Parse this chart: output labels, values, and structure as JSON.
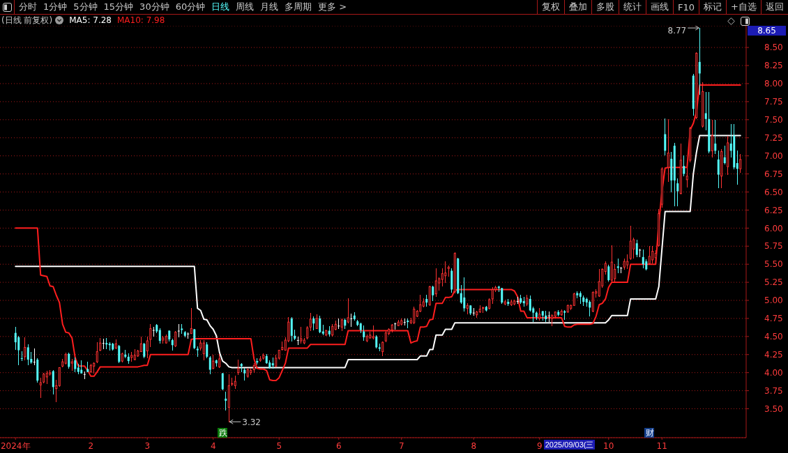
{
  "chart_data": {
    "type": "candlestick",
    "title": "(日线 前复权)",
    "categories": [
      "2024年",
      null,
      null,
      null,
      null,
      null,
      null,
      null,
      null,
      null,
      null,
      null,
      null,
      null,
      null,
      null,
      null,
      null,
      null,
      null,
      null,
      null,
      null,
      null,
      "2",
      null,
      null,
      null,
      null,
      null,
      null,
      null,
      null,
      null,
      null,
      null,
      null,
      null,
      null,
      null,
      null,
      null,
      "3",
      null,
      null,
      null,
      null,
      null,
      null,
      null,
      null,
      null,
      null,
      null,
      null,
      null,
      null,
      null,
      null,
      null,
      null,
      null,
      null,
      "4",
      null,
      null,
      null,
      null,
      null,
      null,
      null,
      null,
      null,
      null,
      null,
      null,
      null,
      null,
      null,
      null,
      null,
      null,
      null,
      null,
      "5",
      null,
      null,
      null,
      null,
      null,
      null,
      null,
      null,
      null,
      null,
      null,
      null,
      null,
      null,
      null,
      null,
      null,
      null,
      "6",
      null,
      null,
      null,
      null,
      null,
      null,
      null,
      null,
      null,
      null,
      null,
      null,
      null,
      null,
      null,
      null,
      null,
      null,
      null,
      "7",
      null,
      null,
      null,
      null,
      null,
      null,
      null,
      null,
      null,
      null,
      null,
      null,
      null,
      null,
      null,
      null,
      null,
      null,
      null,
      null,
      null,
      null,
      "8",
      null,
      null,
      null,
      null,
      null,
      null,
      null,
      null,
      null,
      null,
      null,
      null,
      null,
      null,
      null,
      null,
      null,
      null,
      null,
      null,
      "9",
      null,
      null,
      null,
      null,
      null,
      null,
      null,
      null,
      null,
      null,
      null,
      null,
      null,
      null,
      null,
      null,
      null,
      null,
      null,
      null,
      null,
      "10",
      null,
      null,
      null,
      null,
      null,
      null,
      null,
      null,
      null,
      null,
      null,
      null,
      null,
      null,
      null,
      null,
      "11",
      null,
      null,
      null,
      null,
      null,
      null,
      null,
      null,
      null,
      null,
      null,
      null,
      null,
      null,
      null,
      null,
      null,
      null,
      null,
      null,
      null,
      null,
      null,
      null,
      null
    ],
    "ohlc": [
      [
        4.55,
        4.63,
        4.32,
        4.42
      ],
      [
        4.49,
        4.5,
        4.11,
        4.31
      ],
      [
        4.2,
        4.29,
        4.17,
        4.19
      ],
      [
        4.22,
        4.48,
        4.18,
        4.35
      ],
      [
        4.35,
        4.39,
        4.11,
        4.18
      ],
      [
        4.19,
        4.28,
        4.13,
        4.14
      ],
      [
        4.15,
        4.33,
        4.11,
        4.15
      ],
      [
        4.18,
        4.19,
        3.87,
        3.89
      ],
      [
        3.83,
        3.92,
        3.66,
        3.86
      ],
      [
        3.87,
        3.99,
        3.86,
        3.98
      ],
      [
        3.94,
        4.02,
        3.85,
        3.99
      ],
      [
        3.98,
        4.03,
        3.96,
        4.0
      ],
      [
        4.02,
        4.03,
        3.7,
        3.8
      ],
      [
        3.78,
        3.89,
        3.6,
        3.82
      ],
      [
        3.82,
        4.07,
        3.81,
        4.07
      ],
      [
        4.09,
        4.18,
        4.08,
        4.15
      ],
      [
        4.13,
        4.27,
        4.12,
        4.25
      ],
      [
        4.26,
        4.27,
        4.06,
        4.08
      ],
      [
        4.13,
        4.18,
        4.03,
        4.15
      ],
      [
        4.17,
        4.2,
        4.01,
        4.05
      ],
      [
        4.07,
        4.12,
        3.98,
        4.01
      ],
      [
        4.04,
        4.16,
        3.99,
        3.99
      ],
      [
        3.98,
        4.01,
        3.92,
        3.98
      ],
      [
        4.05,
        4.15,
        4.01,
        4.01
      ],
      [
        4.01,
        4.12,
        4.0,
        4.1
      ],
      [
        4.09,
        4.14,
        3.99,
        4.13
      ],
      [
        4.15,
        4.42,
        4.14,
        4.29
      ],
      [
        4.31,
        4.47,
        4.3,
        4.41
      ],
      [
        4.41,
        4.46,
        4.33,
        4.41
      ],
      [
        4.41,
        4.47,
        4.33,
        4.39
      ],
      [
        4.4,
        4.42,
        4.31,
        4.38
      ],
      [
        4.4,
        4.41,
        4.31,
        4.32
      ],
      [
        4.34,
        4.45,
        4.33,
        4.4
      ],
      [
        4.37,
        4.38,
        4.14,
        4.15
      ],
      [
        4.16,
        4.27,
        4.15,
        4.26
      ],
      [
        4.25,
        4.31,
        4.21,
        4.22
      ],
      [
        4.22,
        4.26,
        4.13,
        4.16
      ],
      [
        4.21,
        4.28,
        4.16,
        4.24
      ],
      [
        4.18,
        4.32,
        4.18,
        4.24
      ],
      [
        4.23,
        4.31,
        4.22,
        4.3
      ],
      [
        4.29,
        4.49,
        4.29,
        4.4
      ],
      [
        4.4,
        4.41,
        4.21,
        4.22
      ],
      [
        4.3,
        4.49,
        4.21,
        4.44
      ],
      [
        4.46,
        4.67,
        4.36,
        4.61
      ],
      [
        4.59,
        4.63,
        4.5,
        4.59
      ],
      [
        4.66,
        4.67,
        4.55,
        4.57
      ],
      [
        4.59,
        4.61,
        4.41,
        4.44
      ],
      [
        4.45,
        4.5,
        4.41,
        4.48
      ],
      [
        4.41,
        4.52,
        4.41,
        4.5
      ],
      [
        4.58,
        4.58,
        4.44,
        4.46
      ],
      [
        4.45,
        4.46,
        4.31,
        4.38
      ],
      [
        4.37,
        4.57,
        4.36,
        4.56
      ],
      [
        4.58,
        4.67,
        4.49,
        4.58
      ],
      [
        4.61,
        4.67,
        4.54,
        4.59
      ],
      [
        4.56,
        4.57,
        4.49,
        4.51
      ],
      [
        4.54,
        4.55,
        4.48,
        4.54
      ],
      [
        4.54,
        4.89,
        4.54,
        4.61
      ],
      [
        4.6,
        4.6,
        4.33,
        4.34
      ],
      [
        4.33,
        4.36,
        4.22,
        4.31
      ],
      [
        4.34,
        4.44,
        4.31,
        4.41
      ],
      [
        4.26,
        4.44,
        4.18,
        4.41
      ],
      [
        4.39,
        4.42,
        4.21,
        4.22
      ],
      [
        4.21,
        4.22,
        3.98,
        4.04
      ],
      [
        4.06,
        4.24,
        4.05,
        4.16
      ],
      [
        4.17,
        4.17,
        4.09,
        4.13
      ],
      [
        4.08,
        4.25,
        4.07,
        4.19
      ],
      [
        3.99,
        3.99,
        3.76,
        3.77
      ],
      [
        3.64,
        3.73,
        3.48,
        3.61
      ],
      [
        3.52,
        3.97,
        3.32,
        3.82
      ],
      [
        3.84,
        3.92,
        3.82,
        3.85
      ],
      [
        3.82,
        3.95,
        3.78,
        3.88
      ],
      [
        4.0,
        4.17,
        3.97,
        4.06
      ],
      [
        4.12,
        4.13,
        4.01,
        4.09
      ],
      [
        4.04,
        4.06,
        3.9,
        3.99
      ],
      [
        3.95,
        4.06,
        3.94,
        4.04
      ],
      [
        4.0,
        4.06,
        3.97,
        4.03
      ],
      [
        4.04,
        4.13,
        4.0,
        4.1
      ],
      [
        4.16,
        4.19,
        4.12,
        4.14
      ],
      [
        4.17,
        4.22,
        4.16,
        4.19
      ],
      [
        4.2,
        4.26,
        4.19,
        4.24
      ],
      [
        4.23,
        4.25,
        4.13,
        4.13
      ],
      [
        4.14,
        4.16,
        4.06,
        4.07
      ],
      [
        4.13,
        4.2,
        4.06,
        4.1
      ],
      [
        4.09,
        4.24,
        4.08,
        4.2
      ],
      [
        4.2,
        4.31,
        4.19,
        4.31
      ],
      [
        4.32,
        4.43,
        4.31,
        4.35
      ],
      [
        4.31,
        4.48,
        4.31,
        4.45
      ],
      [
        4.44,
        4.76,
        4.43,
        4.7
      ],
      [
        4.75,
        4.76,
        4.44,
        4.51
      ],
      [
        4.51,
        4.59,
        4.46,
        4.47
      ],
      [
        4.45,
        4.49,
        4.39,
        4.45
      ],
      [
        4.44,
        4.63,
        4.41,
        4.47
      ],
      [
        4.41,
        4.47,
        4.4,
        4.45
      ],
      [
        4.48,
        4.64,
        4.47,
        4.62
      ],
      [
        4.63,
        4.82,
        4.58,
        4.74
      ],
      [
        4.75,
        4.77,
        4.59,
        4.68
      ],
      [
        4.61,
        4.8,
        4.61,
        4.75
      ],
      [
        4.75,
        4.78,
        4.55,
        4.56
      ],
      [
        4.57,
        4.66,
        4.52,
        4.54
      ],
      [
        4.52,
        4.59,
        4.51,
        4.58
      ],
      [
        4.58,
        4.64,
        4.5,
        4.53
      ],
      [
        4.52,
        4.67,
        4.5,
        4.64
      ],
      [
        4.6,
        4.71,
        4.59,
        4.67
      ],
      [
        4.65,
        4.74,
        4.61,
        4.65
      ],
      [
        4.63,
        4.74,
        4.58,
        4.73
      ],
      [
        4.73,
        4.74,
        4.61,
        4.65
      ],
      [
        4.7,
        5.02,
        4.69,
        4.76
      ],
      [
        4.75,
        4.81,
        4.64,
        4.75
      ],
      [
        4.79,
        4.83,
        4.73,
        4.74
      ],
      [
        4.71,
        4.72,
        4.65,
        4.66
      ],
      [
        4.68,
        4.69,
        4.55,
        4.59
      ],
      [
        4.57,
        4.65,
        4.45,
        4.49
      ],
      [
        4.44,
        4.52,
        4.43,
        4.5
      ],
      [
        4.48,
        4.56,
        4.48,
        4.52
      ],
      [
        4.48,
        4.65,
        4.47,
        4.5
      ],
      [
        4.5,
        4.51,
        4.34,
        4.35
      ],
      [
        4.35,
        4.4,
        4.3,
        4.33
      ],
      [
        4.29,
        4.43,
        4.23,
        4.42
      ],
      [
        4.44,
        4.57,
        4.43,
        4.55
      ],
      [
        4.54,
        4.61,
        4.52,
        4.6
      ],
      [
        4.59,
        4.67,
        4.56,
        4.66
      ],
      [
        4.68,
        4.69,
        4.6,
        4.68
      ],
      [
        4.65,
        4.72,
        4.65,
        4.7
      ],
      [
        4.67,
        4.74,
        4.66,
        4.72
      ],
      [
        4.7,
        4.74,
        4.66,
        4.7
      ],
      [
        4.72,
        4.74,
        4.62,
        4.7
      ],
      [
        4.69,
        4.75,
        4.68,
        4.72
      ],
      [
        4.69,
        4.91,
        4.68,
        4.88
      ],
      [
        4.78,
        4.86,
        4.77,
        4.85
      ],
      [
        4.85,
        5.07,
        4.84,
        4.94
      ],
      [
        4.92,
        5.02,
        4.91,
        4.98
      ],
      [
        5.02,
        5.07,
        4.92,
        4.97
      ],
      [
        4.94,
        5.2,
        4.93,
        5.19
      ],
      [
        5.19,
        5.2,
        5.0,
        5.07
      ],
      [
        5.09,
        5.44,
        5.05,
        5.27
      ],
      [
        5.24,
        5.31,
        5.14,
        5.3
      ],
      [
        5.29,
        5.44,
        5.2,
        5.37
      ],
      [
        5.34,
        5.53,
        5.25,
        5.38
      ],
      [
        5.44,
        5.48,
        5.33,
        5.46
      ],
      [
        5.41,
        5.44,
        5.11,
        5.15
      ],
      [
        5.12,
        5.66,
        5.1,
        5.65
      ],
      [
        5.58,
        5.58,
        5.09,
        5.1
      ],
      [
        5.1,
        5.21,
        4.96,
        4.97
      ],
      [
        5.04,
        5.31,
        4.85,
        4.89
      ],
      [
        4.89,
        4.96,
        4.81,
        4.93
      ],
      [
        4.93,
        4.93,
        4.8,
        4.82
      ],
      [
        4.83,
        4.89,
        4.79,
        4.83
      ],
      [
        4.8,
        4.85,
        4.76,
        4.84
      ],
      [
        4.84,
        4.93,
        4.83,
        4.88
      ],
      [
        4.89,
        4.91,
        4.83,
        4.9
      ],
      [
        4.91,
        4.92,
        4.85,
        4.86
      ],
      [
        4.89,
        5.02,
        4.88,
        5.01
      ],
      [
        5.02,
        5.18,
        4.96,
        5.15
      ],
      [
        5.15,
        5.2,
        5.12,
        5.18
      ],
      [
        5.19,
        5.2,
        5.12,
        5.17
      ],
      [
        5.17,
        5.17,
        4.96,
        4.97
      ],
      [
        4.95,
        5.0,
        4.94,
        4.98
      ],
      [
        4.98,
        5.01,
        4.93,
        4.95
      ],
      [
        4.94,
        5.0,
        4.93,
        4.98
      ],
      [
        4.95,
        5.0,
        4.94,
        4.99
      ],
      [
        4.99,
        5.04,
        4.96,
        4.99
      ],
      [
        5.03,
        5.07,
        4.96,
        4.97
      ],
      [
        4.99,
        5.04,
        4.92,
        4.96
      ],
      [
        4.95,
        5.07,
        4.93,
        5.03
      ],
      [
        5.02,
        5.06,
        4.85,
        4.86
      ],
      [
        4.89,
        4.91,
        4.71,
        4.83
      ],
      [
        4.83,
        4.84,
        4.74,
        4.77
      ],
      [
        4.75,
        4.89,
        4.73,
        4.81
      ],
      [
        4.85,
        4.85,
        4.73,
        4.79
      ],
      [
        4.79,
        4.85,
        4.71,
        4.74
      ],
      [
        4.79,
        4.84,
        4.71,
        4.79
      ],
      [
        4.75,
        4.8,
        4.65,
        4.79
      ],
      [
        4.78,
        4.84,
        4.76,
        4.84
      ],
      [
        4.84,
        4.86,
        4.78,
        4.8
      ],
      [
        4.8,
        4.87,
        4.79,
        4.85
      ],
      [
        4.85,
        4.86,
        4.74,
        4.83
      ],
      [
        4.84,
        4.94,
        4.83,
        4.93
      ],
      [
        4.89,
        4.94,
        4.87,
        4.93
      ],
      [
        4.93,
        5.1,
        4.93,
        5.09
      ],
      [
        5.1,
        5.12,
        5.03,
        5.07
      ],
      [
        5.1,
        5.12,
        4.96,
        5.05
      ],
      [
        5.04,
        5.06,
        4.93,
        4.98
      ],
      [
        5.02,
        5.03,
        4.92,
        4.97
      ],
      [
        4.98,
        4.99,
        4.78,
        4.9
      ],
      [
        4.85,
        5.12,
        4.84,
        5.11
      ],
      [
        5.1,
        5.15,
        5.04,
        5.12
      ],
      [
        5.06,
        5.43,
        5.05,
        5.26
      ],
      [
        5.2,
        5.44,
        5.18,
        5.43
      ],
      [
        5.4,
        5.53,
        5.36,
        5.51
      ],
      [
        5.47,
        5.49,
        5.27,
        5.28
      ],
      [
        5.28,
        5.76,
        5.27,
        5.53
      ],
      [
        5.3,
        5.5,
        5.27,
        5.43
      ],
      [
        5.47,
        5.57,
        5.38,
        5.45
      ],
      [
        5.45,
        5.46,
        5.38,
        5.45
      ],
      [
        5.46,
        5.57,
        5.43,
        5.54
      ],
      [
        5.49,
        5.63,
        5.44,
        5.54
      ],
      [
        5.58,
        6.03,
        5.57,
        5.82
      ],
      [
        5.71,
        5.86,
        5.58,
        5.84
      ],
      [
        5.79,
        5.83,
        5.6,
        5.63
      ],
      [
        5.7,
        5.71,
        5.6,
        5.7
      ],
      [
        5.6,
        5.7,
        5.45,
        5.5
      ],
      [
        5.54,
        5.56,
        5.42,
        5.43
      ],
      [
        5.51,
        5.75,
        5.5,
        5.61
      ],
      [
        5.56,
        5.75,
        5.52,
        5.68
      ],
      [
        5.59,
        5.69,
        5.51,
        5.65
      ],
      [
        5.76,
        6.26,
        5.75,
        6.2
      ],
      [
        6.33,
        6.84,
        6.29,
        6.82
      ],
      [
        7.3,
        7.51,
        7.01,
        7.07
      ],
      [
        6.84,
        7.5,
        6.65,
        7.04
      ],
      [
        6.96,
        7.05,
        6.5,
        6.66
      ],
      [
        7.14,
        7.17,
        6.31,
        6.66
      ],
      [
        6.62,
        6.68,
        6.31,
        6.51
      ],
      [
        6.48,
        7.16,
        6.47,
        6.94
      ],
      [
        6.86,
        7.0,
        6.72,
        6.75
      ],
      [
        6.67,
        6.83,
        6.57,
        6.72
      ],
      [
        6.94,
        7.4,
        6.92,
        7.38
      ],
      [
        8.11,
        8.13,
        7.56,
        7.65
      ],
      [
        7.53,
        8.43,
        7.51,
        8.42
      ],
      [
        8.3,
        8.77,
        7.85,
        8.14
      ],
      [
        7.41,
        8.01,
        7.4,
        7.89
      ],
      [
        7.59,
        7.88,
        7.36,
        7.51
      ],
      [
        7.51,
        7.88,
        7.04,
        7.06
      ],
      [
        7.07,
        7.49,
        6.98,
        7.28
      ],
      [
        7.17,
        7.49,
        7.03,
        7.07
      ],
      [
        6.95,
        7.07,
        6.56,
        6.74
      ],
      [
        6.72,
        7.09,
        6.56,
        7.06
      ],
      [
        6.98,
        7.14,
        6.89,
        6.9
      ],
      [
        6.85,
        7.27,
        6.74,
        7.18
      ],
      [
        7.17,
        7.43,
        6.98,
        7.07
      ],
      [
        7.28,
        7.43,
        6.82,
        6.84
      ],
      [
        6.9,
        7.07,
        6.61,
        6.82
      ],
      [
        6.82,
        7.02,
        6.77,
        6.95
      ]
    ],
    "colors": [
      "#54fcfc",
      "#54fcfc",
      "#54fcfc",
      "#ff3232",
      "#54fcfc",
      "#54fcfc",
      "#ffffff",
      "#54fcfc",
      "#ff3232",
      "#ff3232",
      "#ff3232",
      "#ff3232",
      "#54fcfc",
      "#ff3232",
      "#ff3232",
      "#ff3232",
      "#ff3232",
      "#54fcfc",
      "#ff3232",
      "#54fcfc",
      "#54fcfc",
      "#54fcfc",
      "#ffffff",
      "#54fcfc",
      "#ff3232",
      "#ff3232",
      "#ff3232",
      "#ff3232",
      "#ffffff",
      "#54fcfc",
      "#54fcfc",
      "#54fcfc",
      "#ff3232",
      "#54fcfc",
      "#ff3232",
      "#54fcfc",
      "#54fcfc",
      "#ff3232",
      "#ff3232",
      "#ff3232",
      "#ff3232",
      "#54fcfc",
      "#ff3232",
      "#ff3232",
      "#ffffff",
      "#54fcfc",
      "#54fcfc",
      "#ff3232",
      "#ff3232",
      "#54fcfc",
      "#54fcfc",
      "#ff3232",
      "#ffffff",
      "#54fcfc",
      "#54fcfc",
      "#ffffff",
      "#ff3232",
      "#54fcfc",
      "#54fcfc",
      "#ff3232",
      "#ff3232",
      "#54fcfc",
      "#54fcfc",
      "#ff3232",
      "#54fcfc",
      "#ff3232",
      "#54fcfc",
      "#54fcfc",
      "#ff3232",
      "#ff3232",
      "#ff3232",
      "#ff3232",
      "#54fcfc",
      "#54fcfc",
      "#ff3232",
      "#ff3232",
      "#ff3232",
      "#54fcfc",
      "#ff3232",
      "#ff3232",
      "#54fcfc",
      "#54fcfc",
      "#54fcfc",
      "#ff3232",
      "#ff3232",
      "#ff3232",
      "#ff3232",
      "#ff3232",
      "#54fcfc",
      "#54fcfc",
      "#ffffff",
      "#ff3232",
      "#ff3232",
      "#ff3232",
      "#ff3232",
      "#54fcfc",
      "#ff3232",
      "#54fcfc",
      "#54fcfc",
      "#ff3232",
      "#54fcfc",
      "#ff3232",
      "#ff3232",
      "#ffffff",
      "#ff3232",
      "#54fcfc",
      "#ff3232",
      "#ffffff",
      "#54fcfc",
      "#54fcfc",
      "#54fcfc",
      "#54fcfc",
      "#ff3232",
      "#ff3232",
      "#ff3232",
      "#54fcfc",
      "#54fcfc",
      "#ff3232",
      "#ff3232",
      "#ff3232",
      "#ff3232",
      "#ffffff",
      "#ff3232",
      "#ff3232",
      "#ffffff",
      "#54fcfc",
      "#ff3232",
      "#ff3232",
      "#ff3232",
      "#ff3232",
      "#ff3232",
      "#54fcfc",
      "#ff3232",
      "#54fcfc",
      "#ff3232",
      "#ff3232",
      "#ff3232",
      "#ff3232",
      "#ff3232",
      "#54fcfc",
      "#ff3232",
      "#54fcfc",
      "#54fcfc",
      "#54fcfc",
      "#ff3232",
      "#54fcfc",
      "#ffffff",
      "#ff3232",
      "#ff3232",
      "#ff3232",
      "#54fcfc",
      "#ff3232",
      "#ff3232",
      "#ff3232",
      "#54fcfc",
      "#54fcfc",
      "#ff3232",
      "#54fcfc",
      "#ff3232",
      "#ff3232",
      "#ffffff",
      "#54fcfc",
      "#54fcfc",
      "#ff3232",
      "#54fcfc",
      "#54fcfc",
      "#54fcfc",
      "#ff3232",
      "#54fcfc",
      "#54fcfc",
      "#ffffff",
      "#ff3232",
      "#ff3232",
      "#54fcfc",
      "#ff3232",
      "#54fcfc",
      "#ff3232",
      "#ff3232",
      "#ff3232",
      "#54fcfc",
      "#54fcfc",
      "#54fcfc",
      "#54fcfc",
      "#54fcfc",
      "#ff3232",
      "#ff3232",
      "#ff3232",
      "#ff3232",
      "#ff3232",
      "#54fcfc",
      "#ff3232",
      "#ff3232",
      "#54fcfc",
      "#ffffff",
      "#ff3232",
      "#ff3232",
      "#ff3232",
      "#ff3232",
      "#54fcfc",
      "#ffffff",
      "#54fcfc",
      "#54fcfc",
      "#ff3232",
      "#ff3232",
      "#ff3232",
      "#ff3232",
      "#ff3232",
      "#54fcfc",
      "#ff3232",
      "#54fcfc",
      "#54fcfc",
      "#54fcfc",
      "#ff3232",
      "#54fcfc",
      "#ff3232",
      "#ff3232",
      "#54fcfc",
      "#ff3232",
      "#54fcfc",
      "#ff3232",
      "#54fcfc",
      "#54fcfc",
      "#ff3232",
      "#54fcfc",
      "#54fcfc",
      "#ff3232",
      "#54fcfc",
      "#ff3232",
      "#54fcfc",
      "#54fcfc",
      "#54fcfc",
      "#ff3232"
    ],
    "series": [
      {
        "name": "MA5: 7.28",
        "type": "line",
        "color": "#ffffff",
        "values": [
          5.47,
          5.47,
          5.47,
          5.47,
          5.47,
          5.47,
          5.47,
          5.47,
          5.47,
          5.47,
          5.47,
          5.47,
          5.47,
          5.47,
          5.47,
          5.47,
          5.47,
          5.47,
          5.47,
          5.47,
          5.47,
          5.47,
          5.47,
          5.47,
          5.47,
          5.47,
          5.47,
          5.47,
          5.47,
          5.47,
          5.47,
          5.47,
          5.47,
          5.47,
          5.47,
          5.47,
          5.47,
          5.47,
          5.47,
          5.47,
          5.47,
          5.47,
          5.47,
          5.47,
          5.47,
          5.47,
          5.47,
          5.47,
          5.47,
          5.47,
          5.47,
          5.47,
          5.47,
          5.47,
          5.47,
          5.47,
          5.47,
          5.47,
          4.89,
          4.86,
          4.74,
          4.73,
          4.65,
          4.6,
          4.51,
          4.28,
          4.16,
          4.13,
          4.08,
          4.07,
          4.07,
          4.07,
          4.07,
          4.07,
          4.07,
          4.07,
          4.07,
          4.07,
          4.07,
          4.07,
          4.07,
          4.07,
          4.07,
          4.07,
          4.07,
          4.07,
          4.07,
          4.07,
          4.07,
          4.07,
          4.07,
          4.07,
          4.07,
          4.07,
          4.07,
          4.07,
          4.07,
          4.07,
          4.07,
          4.07,
          4.07,
          4.07,
          4.07,
          4.07,
          4.07,
          4.07,
          4.18,
          4.18,
          4.18,
          4.18,
          4.18,
          4.18,
          4.18,
          4.18,
          4.18,
          4.18,
          4.18,
          4.18,
          4.18,
          4.18,
          4.18,
          4.18,
          4.18,
          4.18,
          4.18,
          4.18,
          4.18,
          4.18,
          4.18,
          4.23,
          4.23,
          4.23,
          4.32,
          4.32,
          4.52,
          4.52,
          4.52,
          4.6,
          4.6,
          4.6,
          4.69,
          4.69,
          4.69,
          4.69,
          4.69,
          4.69,
          4.69,
          4.69,
          4.69,
          4.69,
          4.69,
          4.69,
          4.69,
          4.69,
          4.69,
          4.69,
          4.69,
          4.69,
          4.69,
          4.69,
          4.69,
          4.69,
          4.69,
          4.69,
          4.69,
          4.69,
          4.69,
          4.69,
          4.69,
          4.69,
          4.69,
          4.69,
          4.69,
          4.69,
          4.69,
          4.69,
          4.69,
          4.69,
          4.69,
          4.69,
          4.69,
          4.69,
          4.69,
          4.69,
          4.69,
          4.69,
          4.69,
          4.69,
          4.69,
          4.73,
          4.79,
          4.79,
          4.79,
          4.79,
          4.79,
          4.79,
          5.02,
          5.02,
          5.02,
          5.02,
          5.02,
          5.02,
          5.02,
          5.02,
          5.02,
          5.19,
          5.71,
          6.23,
          6.23,
          6.23,
          6.23,
          6.23,
          6.23,
          6.23,
          6.23,
          6.23,
          6.75,
          7.05,
          7.28,
          7.28,
          7.28,
          7.28,
          7.28,
          7.28,
          7.28,
          7.28,
          7.28,
          7.28,
          7.28,
          7.28,
          7.28,
          7.28
        ]
      },
      {
        "name": "MA10: 7.98",
        "type": "line",
        "color": "#ff1e1e",
        "values": [
          6,
          6,
          6,
          6,
          6,
          6,
          6,
          6,
          5.35,
          5.34,
          5.33,
          5.2,
          5.19,
          5.07,
          4.97,
          4.67,
          4.56,
          4.55,
          4.48,
          4.21,
          4.09,
          4.09,
          4.09,
          4.03,
          3.95,
          3.95,
          4.01,
          4.08,
          4.08,
          4.08,
          4.08,
          4.08,
          4.08,
          4.08,
          4.08,
          4.08,
          4.08,
          4.08,
          4.08,
          4.08,
          4.09,
          4.1,
          4.1,
          4.25,
          4.25,
          4.25,
          4.25,
          4.25,
          4.25,
          4.25,
          4.25,
          4.25,
          4.25,
          4.25,
          4.25,
          4.25,
          4.46,
          4.47,
          4.47,
          4.47,
          4.47,
          4.47,
          4.47,
          4.47,
          4.47,
          4.47,
          4.47,
          4.47,
          4.47,
          4.47,
          4.47,
          4.47,
          4.47,
          4.47,
          4.47,
          4.47,
          4.19,
          4.06,
          4.05,
          4.05,
          4.03,
          3.9,
          3.89,
          3.89,
          3.93,
          4.03,
          4.13,
          4.34,
          4.34,
          4.34,
          4.34,
          4.34,
          4.34,
          4.34,
          4.39,
          4.39,
          4.39,
          4.39,
          4.39,
          4.39,
          4.39,
          4.39,
          4.39,
          4.39,
          4.39,
          4.39,
          4.58,
          4.58,
          4.58,
          4.58,
          4.58,
          4.58,
          4.58,
          4.58,
          4.58,
          4.58,
          4.58,
          4.58,
          4.58,
          4.58,
          4.58,
          4.58,
          4.58,
          4.58,
          4.58,
          4.58,
          4.41,
          4.43,
          4.44,
          4.63,
          4.63,
          4.64,
          4.73,
          4.74,
          4.96,
          4.96,
          4.96,
          5.04,
          5.04,
          5.05,
          5.14,
          5.15,
          5.15,
          5.15,
          5.15,
          5.15,
          5.15,
          5.15,
          5.15,
          5.15,
          5.15,
          5.15,
          5.15,
          5.15,
          5.15,
          5.15,
          5.15,
          5.15,
          5.15,
          5.13,
          5.05,
          4.85,
          4.85,
          4.76,
          4.76,
          4.76,
          4.76,
          4.76,
          4.76,
          4.76,
          4.76,
          4.76,
          4.76,
          4.76,
          4.76,
          4.64,
          4.63,
          4.63,
          4.66,
          4.67,
          4.67,
          4.67,
          4.67,
          4.67,
          4.68,
          4.78,
          4.94,
          4.96,
          5.02,
          5.18,
          5.25,
          5.25,
          5.25,
          5.25,
          5.25,
          5.25,
          5.5,
          5.5,
          5.5,
          5.5,
          5.5,
          5.5,
          5.5,
          5.5,
          5.5,
          6.07,
          6.51,
          6.83,
          6.84,
          6.84,
          6.84,
          6.84,
          6.84,
          6.84,
          6.84,
          7.36,
          7.45,
          7.61,
          7.98,
          7.98,
          7.98,
          7.98,
          7.98,
          7.98,
          7.98,
          7.98,
          7.98,
          7.98,
          7.98,
          7.98,
          7.98,
          7.98
        ]
      }
    ],
    "ylim": [
      3.1,
      8.8
    ],
    "yticks": [
      {
        "value": 3.5,
        "label": "3.50"
      },
      {
        "value": 3.75,
        "label": "3.75"
      },
      {
        "value": 4,
        "label": "4.00"
      },
      {
        "value": 4.25,
        "label": "4.25"
      },
      {
        "value": 4.5,
        "label": "4.50"
      },
      {
        "value": 4.75,
        "label": "4.75"
      },
      {
        "value": 5,
        "label": "5.00"
      },
      {
        "value": 5.25,
        "label": "5.25"
      },
      {
        "value": 5.5,
        "label": "5.50"
      },
      {
        "value": 5.75,
        "label": "5.75"
      },
      {
        "value": 6,
        "label": "6.00"
      },
      {
        "value": 6.25,
        "label": "6.25"
      },
      {
        "value": 6.5,
        "label": "6.50"
      },
      {
        "value": 6.75,
        "label": "6.75"
      },
      {
        "value": 7,
        "label": "7.00"
      },
      {
        "value": 7.25,
        "label": "7.25"
      },
      {
        "value": 7.5,
        "label": "7.50"
      },
      {
        "value": 7.75,
        "label": "7.75"
      },
      {
        "value": 8,
        "label": "8.00"
      },
      {
        "value": 8.25,
        "label": "8.25"
      },
      {
        "value": 8.5,
        "label": "8.50"
      }
    ],
    "grid": "y",
    "legend": "top left",
    "annotations": [
      "分时",
      "1分钟",
      "5分钟",
      "15分钟",
      "30分钟",
      "60分钟",
      "日线",
      "周线",
      "月线",
      "多周期",
      "更多 >",
      "复权",
      "叠加",
      "多股",
      "统计",
      "画线",
      "F10",
      "标记",
      "+自选",
      "返回",
      "8.65",
      "2025/09/03(三",
      "跌",
      "财",
      "8.77",
      "3.32"
    ]
  }
}
